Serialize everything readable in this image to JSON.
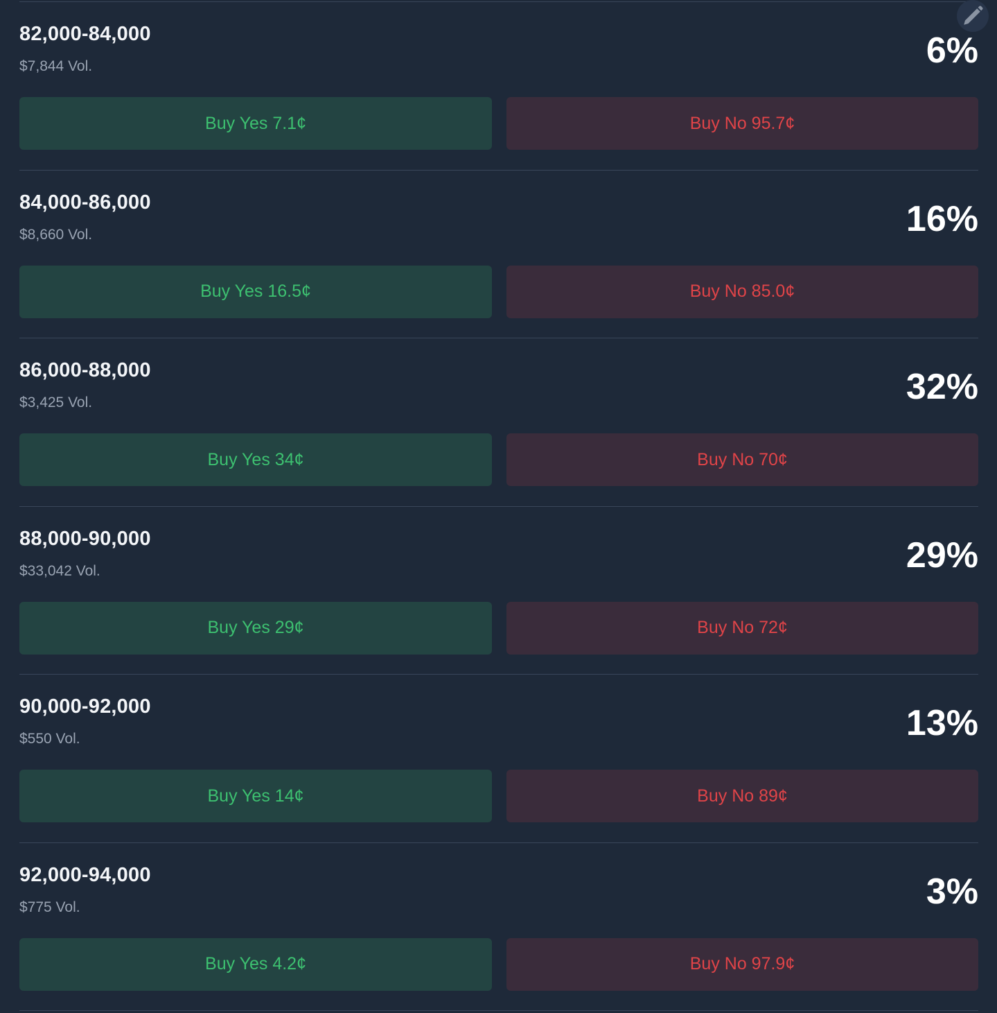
{
  "colors": {
    "background": "#1e2939",
    "divider": "#39465a",
    "yes_bg": "#234442",
    "yes_text": "#3dc070",
    "no_bg": "#3a2c3b",
    "no_text": "#e04448"
  },
  "toolbar": {
    "edit_icon": "pencil-icon"
  },
  "markets": [
    {
      "range": "82,000-84,000",
      "volume": "$7,844 Vol.",
      "probability": "6%",
      "yes_label": "Buy Yes 7.1¢",
      "no_label": "Buy No 95.7¢"
    },
    {
      "range": "84,000-86,000",
      "volume": "$8,660 Vol.",
      "probability": "16%",
      "yes_label": "Buy Yes 16.5¢",
      "no_label": "Buy No 85.0¢"
    },
    {
      "range": "86,000-88,000",
      "volume": "$3,425 Vol.",
      "probability": "32%",
      "yes_label": "Buy Yes 34¢",
      "no_label": "Buy No 70¢"
    },
    {
      "range": "88,000-90,000",
      "volume": "$33,042 Vol.",
      "probability": "29%",
      "yes_label": "Buy Yes 29¢",
      "no_label": "Buy No 72¢"
    },
    {
      "range": "90,000-92,000",
      "volume": "$550 Vol.",
      "probability": "13%",
      "yes_label": "Buy Yes 14¢",
      "no_label": "Buy No 89¢"
    },
    {
      "range": "92,000-94,000",
      "volume": "$775 Vol.",
      "probability": "3%",
      "yes_label": "Buy Yes 4.2¢",
      "no_label": "Buy No 97.9¢"
    }
  ]
}
